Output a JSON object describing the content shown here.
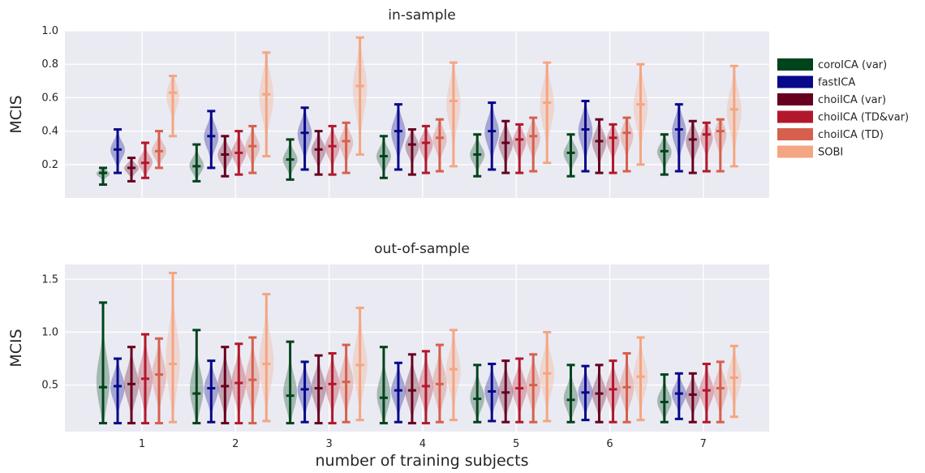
{
  "chart_data": [
    {
      "type": "violin",
      "title": "in-sample",
      "ylabel": "MCIS",
      "xlabel": "",
      "ylim": [
        0.0,
        1.0
      ],
      "yticks": [
        "0.2",
        "0.4",
        "0.6",
        "0.8",
        "1.0"
      ],
      "categories": [
        "1",
        "2",
        "3",
        "4",
        "5",
        "6",
        "7"
      ],
      "grid": true,
      "series": [
        {
          "name": "coroICA (var)",
          "color": "#00441b",
          "min": [
            0.08,
            0.1,
            0.11,
            0.12,
            0.13,
            0.13,
            0.14
          ],
          "median": [
            0.15,
            0.19,
            0.23,
            0.25,
            0.26,
            0.27,
            0.28
          ],
          "max": [
            0.18,
            0.32,
            0.35,
            0.37,
            0.38,
            0.38,
            0.38
          ]
        },
        {
          "name": "fastICA",
          "color": "#08088a",
          "min": [
            0.15,
            0.18,
            0.17,
            0.17,
            0.17,
            0.16,
            0.16
          ],
          "median": [
            0.29,
            0.37,
            0.39,
            0.4,
            0.4,
            0.41,
            0.41
          ],
          "max": [
            0.41,
            0.52,
            0.54,
            0.56,
            0.57,
            0.58,
            0.56
          ]
        },
        {
          "name": "choiICA (var)",
          "color": "#67001f",
          "min": [
            0.1,
            0.13,
            0.14,
            0.14,
            0.15,
            0.15,
            0.15
          ],
          "median": [
            0.18,
            0.26,
            0.29,
            0.32,
            0.33,
            0.34,
            0.35
          ],
          "max": [
            0.24,
            0.37,
            0.4,
            0.41,
            0.46,
            0.47,
            0.46
          ]
        },
        {
          "name": "choiICA (TD&var)",
          "color": "#b2182b",
          "min": [
            0.12,
            0.14,
            0.14,
            0.15,
            0.15,
            0.15,
            0.16
          ],
          "median": [
            0.21,
            0.27,
            0.31,
            0.33,
            0.35,
            0.36,
            0.38
          ],
          "max": [
            0.33,
            0.4,
            0.43,
            0.43,
            0.44,
            0.44,
            0.45
          ]
        },
        {
          "name": "choiICA (TD)",
          "color": "#d6604d",
          "min": [
            0.18,
            0.15,
            0.15,
            0.16,
            0.16,
            0.16,
            0.16
          ],
          "median": [
            0.28,
            0.31,
            0.34,
            0.36,
            0.37,
            0.39,
            0.4
          ],
          "max": [
            0.4,
            0.43,
            0.45,
            0.47,
            0.48,
            0.48,
            0.47
          ]
        },
        {
          "name": "SOBI",
          "color": "#f4a582",
          "min": [
            0.37,
            0.25,
            0.26,
            0.19,
            0.21,
            0.2,
            0.19
          ],
          "median": [
            0.63,
            0.62,
            0.67,
            0.58,
            0.57,
            0.56,
            0.53
          ],
          "max": [
            0.73,
            0.87,
            0.96,
            0.81,
            0.81,
            0.8,
            0.79
          ]
        }
      ]
    },
    {
      "type": "violin",
      "title": "out-of-sample",
      "ylabel": "MCIS",
      "xlabel": "number of training subjects",
      "ylim": [
        0.06,
        1.64
      ],
      "yticks": [
        "0.5",
        "1.0",
        "1.5"
      ],
      "categories": [
        "1",
        "2",
        "3",
        "4",
        "5",
        "6",
        "7"
      ],
      "grid": true,
      "series": [
        {
          "name": "coroICA (var)",
          "color": "#00441b",
          "min": [
            0.14,
            0.14,
            0.14,
            0.14,
            0.15,
            0.15,
            0.15
          ],
          "median": [
            0.48,
            0.42,
            0.4,
            0.38,
            0.37,
            0.36,
            0.34
          ],
          "max": [
            1.28,
            1.02,
            0.91,
            0.86,
            0.69,
            0.69,
            0.6
          ]
        },
        {
          "name": "fastICA",
          "color": "#08088a",
          "min": [
            0.14,
            0.15,
            0.15,
            0.15,
            0.16,
            0.17,
            0.18
          ],
          "median": [
            0.49,
            0.47,
            0.46,
            0.45,
            0.44,
            0.43,
            0.42
          ],
          "max": [
            0.75,
            0.73,
            0.72,
            0.71,
            0.7,
            0.68,
            0.61
          ]
        },
        {
          "name": "choiICA (var)",
          "color": "#67001f",
          "min": [
            0.14,
            0.14,
            0.14,
            0.14,
            0.15,
            0.15,
            0.15
          ],
          "median": [
            0.51,
            0.49,
            0.47,
            0.45,
            0.43,
            0.42,
            0.41
          ],
          "max": [
            0.86,
            0.86,
            0.78,
            0.79,
            0.73,
            0.69,
            0.61
          ]
        },
        {
          "name": "choiICA (TD&var)",
          "color": "#b2182b",
          "min": [
            0.14,
            0.14,
            0.14,
            0.14,
            0.15,
            0.15,
            0.15
          ],
          "median": [
            0.56,
            0.52,
            0.51,
            0.49,
            0.47,
            0.46,
            0.45
          ],
          "max": [
            0.98,
            0.89,
            0.8,
            0.82,
            0.75,
            0.73,
            0.7
          ]
        },
        {
          "name": "choiICA (TD)",
          "color": "#d6604d",
          "min": [
            0.14,
            0.14,
            0.15,
            0.15,
            0.15,
            0.15,
            0.15
          ],
          "median": [
            0.6,
            0.55,
            0.53,
            0.51,
            0.5,
            0.48,
            0.47
          ],
          "max": [
            0.94,
            0.95,
            0.88,
            0.88,
            0.79,
            0.8,
            0.72
          ]
        },
        {
          "name": "SOBI",
          "color": "#f4a582",
          "min": [
            0.15,
            0.16,
            0.17,
            0.17,
            0.16,
            0.17,
            0.2
          ],
          "median": [
            0.7,
            0.7,
            0.69,
            0.65,
            0.61,
            0.58,
            0.57
          ],
          "max": [
            1.56,
            1.36,
            1.23,
            1.02,
            1.0,
            0.95,
            0.87
          ]
        }
      ]
    }
  ],
  "legend": [
    {
      "label": "coroICA (var)",
      "color": "#00441b"
    },
    {
      "label": "fastICA",
      "color": "#08088a"
    },
    {
      "label": "choiICA (var)",
      "color": "#67001f"
    },
    {
      "label": "choiICA (TD&var)",
      "color": "#b2182b"
    },
    {
      "label": "choiICA (TD)",
      "color": "#d6604d"
    },
    {
      "label": "SOBI",
      "color": "#f4a582"
    }
  ]
}
